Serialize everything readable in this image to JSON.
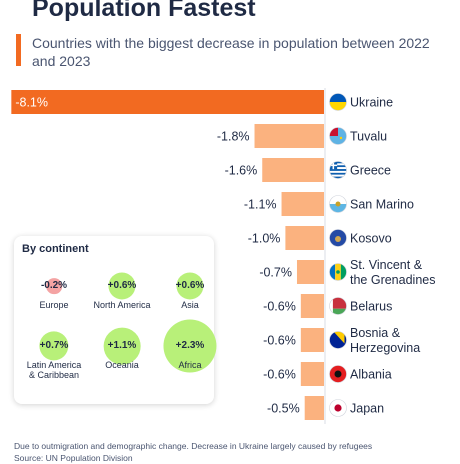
{
  "title": "Population Fastest",
  "subtitle": "Countries with the biggest decrease in population between 2022 and 2023",
  "colors": {
    "accent": "#f26a21",
    "bar": "#fbb27f",
    "highlight_bar": "#f26a21",
    "circle": "#b8f079"
  },
  "chart_data": {
    "type": "bar",
    "orientation": "horizontal",
    "categories": [
      "Ukraine",
      "Tuvalu",
      "Greece",
      "San Marino",
      "Kosovo",
      "St. Vincent & the Grenadines",
      "Belarus",
      "Bosnia & Herzegovina",
      "Albania",
      "Japan"
    ],
    "category_lines": [
      [
        "Ukraine"
      ],
      [
        "Tuvalu"
      ],
      [
        "Greece"
      ],
      [
        "San Marino"
      ],
      [
        "Kosovo"
      ],
      [
        "St. Vincent &",
        "the Grenadines"
      ],
      [
        "Belarus"
      ],
      [
        "Bosnia &",
        "Herzegovina"
      ],
      [
        "Albania"
      ],
      [
        "Japan"
      ]
    ],
    "values": [
      -8.1,
      -1.8,
      -1.6,
      -1.1,
      -1.0,
      -0.7,
      -0.6,
      -0.6,
      -0.6,
      -0.5
    ],
    "labels": [
      "-8.1%",
      "-1.8%",
      "-1.6%",
      "-1.1%",
      "-1.0%",
      "-0.7%",
      "-0.6%",
      "-0.6%",
      "-0.6%",
      "-0.5%"
    ],
    "highlight_index": 0,
    "flags": [
      "ukraine-flag-icon",
      "tuvalu-flag-icon",
      "greece-flag-icon",
      "san-marino-flag-icon",
      "kosovo-flag-icon",
      "st-vincent-flag-icon",
      "belarus-flag-icon",
      "bosnia-flag-icon",
      "albania-flag-icon",
      "japan-flag-icon"
    ]
  },
  "continents": {
    "title": "By continent",
    "items": [
      {
        "name": "Europe",
        "label": "-0.2%",
        "value": -0.2
      },
      {
        "name": "North America",
        "label": "+0.6%",
        "value": 0.6
      },
      {
        "name": "Asia",
        "label": "+0.6%",
        "value": 0.6
      },
      {
        "name": "Latin America & Caribbean",
        "label": "+0.7%",
        "value": 0.7
      },
      {
        "name": "Oceania",
        "label": "+1.1%",
        "value": 1.1
      },
      {
        "name": "Africa",
        "label": "+2.3%",
        "value": 2.3
      }
    ]
  },
  "footer": {
    "note": "Due to outmigration and demographic change. Decrease in Ukraine largely caused by refugees",
    "source": "Source: UN Population Division"
  }
}
